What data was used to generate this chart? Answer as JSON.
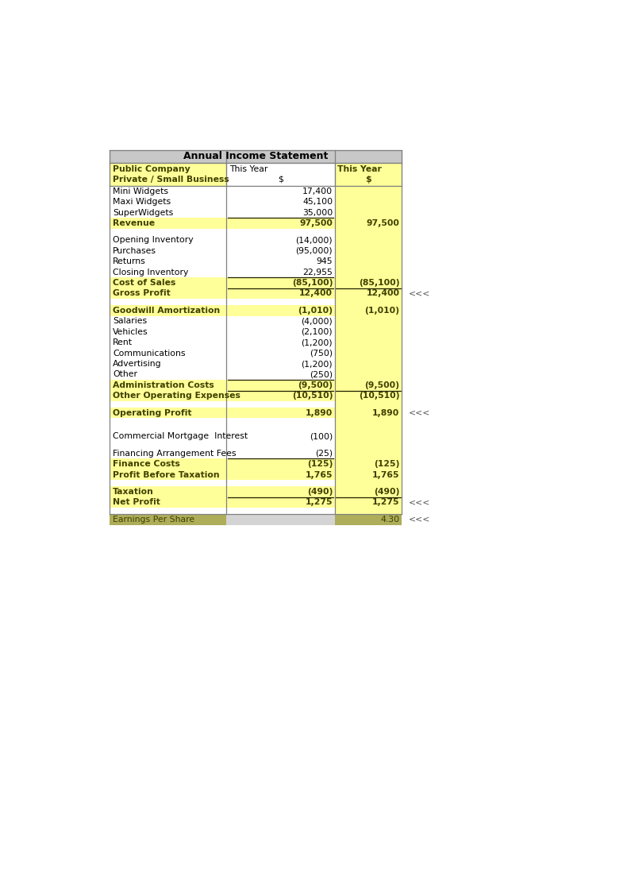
{
  "title": "Annual Income Statement",
  "rows": [
    {
      "label": "Mini Widgets",
      "col2": "17,400",
      "col3": "",
      "style": "normal",
      "underline2": false,
      "underline3": false,
      "bold_label": false
    },
    {
      "label": "Maxi Widgets",
      "col2": "45,100",
      "col3": "",
      "style": "normal",
      "underline2": false,
      "underline3": false,
      "bold_label": false
    },
    {
      "label": "SuperWidgets",
      "col2": "35,000",
      "col3": "",
      "style": "normal",
      "underline2": true,
      "underline3": false,
      "bold_label": false
    },
    {
      "label": "Revenue",
      "col2": "97,500",
      "col3": "97,500",
      "style": "yellow",
      "underline2": false,
      "underline3": false,
      "bold_label": true
    },
    {
      "label": "",
      "col2": "",
      "col3": "",
      "style": "spacer",
      "underline2": false,
      "underline3": false,
      "bold_label": false
    },
    {
      "label": "Opening Inventory",
      "col2": "(14,000)",
      "col3": "",
      "style": "normal",
      "underline2": false,
      "underline3": false,
      "bold_label": false
    },
    {
      "label": "Purchases",
      "col2": "(95,000)",
      "col3": "",
      "style": "normal",
      "underline2": false,
      "underline3": false,
      "bold_label": false
    },
    {
      "label": "Returns",
      "col2": "945",
      "col3": "",
      "style": "normal",
      "underline2": false,
      "underline3": false,
      "bold_label": false
    },
    {
      "label": "Closing Inventory",
      "col2": "22,955",
      "col3": "",
      "style": "normal",
      "underline2": true,
      "underline3": false,
      "bold_label": false
    },
    {
      "label": "Cost of Sales",
      "col2": "(85,100)",
      "col3": "(85,100)",
      "style": "yellow",
      "underline2": true,
      "underline3": true,
      "bold_label": true
    },
    {
      "label": "Gross Profit",
      "col2": "12,400",
      "col3": "12,400",
      "style": "yellow",
      "underline2": false,
      "underline3": false,
      "bold_label": true
    },
    {
      "label": "",
      "col2": "",
      "col3": "",
      "style": "spacer",
      "underline2": false,
      "underline3": false,
      "bold_label": false
    },
    {
      "label": "Goodwill Amortization",
      "col2": "(1,010)",
      "col3": "(1,010)",
      "style": "yellow",
      "underline2": false,
      "underline3": false,
      "bold_label": true
    },
    {
      "label": "Salaries",
      "col2": "(4,000)",
      "col3": "",
      "style": "normal",
      "underline2": false,
      "underline3": false,
      "bold_label": false
    },
    {
      "label": "Vehicles",
      "col2": "(2,100)",
      "col3": "",
      "style": "normal",
      "underline2": false,
      "underline3": false,
      "bold_label": false
    },
    {
      "label": "Rent",
      "col2": "(1,200)",
      "col3": "",
      "style": "normal",
      "underline2": false,
      "underline3": false,
      "bold_label": false
    },
    {
      "label": "Communications",
      "col2": "(750)",
      "col3": "",
      "style": "normal",
      "underline2": false,
      "underline3": false,
      "bold_label": false
    },
    {
      "label": "Advertising",
      "col2": "(1,200)",
      "col3": "",
      "style": "normal",
      "underline2": false,
      "underline3": false,
      "bold_label": false
    },
    {
      "label": "Other",
      "col2": "(250)",
      "col3": "",
      "style": "normal",
      "underline2": true,
      "underline3": false,
      "bold_label": false
    },
    {
      "label": "Administration Costs",
      "col2": "(9,500)",
      "col3": "(9,500)",
      "style": "yellow",
      "underline2": true,
      "underline3": true,
      "bold_label": true
    },
    {
      "label": "Other Operating Expenses",
      "col2": "(10,510)",
      "col3": "(10,510)",
      "style": "yellow",
      "underline2": false,
      "underline3": false,
      "bold_label": true
    },
    {
      "label": "",
      "col2": "",
      "col3": "",
      "style": "spacer",
      "underline2": false,
      "underline3": false,
      "bold_label": false
    },
    {
      "label": "Operating Profit",
      "col2": "1,890",
      "col3": "1,890",
      "style": "yellow",
      "underline2": false,
      "underline3": false,
      "bold_label": true
    },
    {
      "label": "",
      "col2": "",
      "col3": "",
      "style": "spacer",
      "underline2": false,
      "underline3": false,
      "bold_label": false
    },
    {
      "label": "",
      "col2": "",
      "col3": "",
      "style": "spacer",
      "underline2": false,
      "underline3": false,
      "bold_label": false
    },
    {
      "label": "Commercial Mortgage  Interest",
      "col2": "(100)",
      "col3": "",
      "style": "normal",
      "underline2": false,
      "underline3": false,
      "bold_label": false
    },
    {
      "label": "",
      "col2": "",
      "col3": "",
      "style": "spacer",
      "underline2": false,
      "underline3": false,
      "bold_label": false
    },
    {
      "label": "Financing Arrangement Fees",
      "col2": "(25)",
      "col3": "",
      "style": "normal",
      "underline2": true,
      "underline3": false,
      "bold_label": false
    },
    {
      "label": "Finance Costs",
      "col2": "(125)",
      "col3": "(125)",
      "style": "yellow",
      "underline2": false,
      "underline3": false,
      "bold_label": true
    },
    {
      "label": "Profit Before Taxation",
      "col2": "1,765",
      "col3": "1,765",
      "style": "yellow",
      "underline2": false,
      "underline3": false,
      "bold_label": true
    },
    {
      "label": "",
      "col2": "",
      "col3": "",
      "style": "spacer",
      "underline2": false,
      "underline3": false,
      "bold_label": false
    },
    {
      "label": "Taxation",
      "col2": "(490)",
      "col3": "(490)",
      "style": "yellow",
      "underline2": true,
      "underline3": true,
      "bold_label": true
    },
    {
      "label": "Net Profit",
      "col2": "1,275",
      "col3": "1,275",
      "style": "yellow",
      "underline2": false,
      "underline3": false,
      "bold_label": true
    },
    {
      "label": "",
      "col2": "",
      "col3": "",
      "style": "spacer",
      "underline2": false,
      "underline3": false,
      "bold_label": false
    },
    {
      "label": "Earnings Per Share",
      "col2": "",
      "col3": "4.30",
      "style": "green",
      "underline2": false,
      "underline3": false,
      "bold_label": false
    }
  ],
  "arrow_row_labels": [
    "Gross Profit",
    "Operating Profit",
    "Net Profit",
    "Earnings Per Share"
  ],
  "yellow_bg": "#FFFF99",
  "green_bg": "#ADAD5A",
  "title_bg": "#C8C8C8",
  "header_col1_bg": "#FFFF99",
  "header_col2_bg": "#FFFFFF",
  "header_col3_bg": "#FFFF99",
  "border_color": "#808080",
  "text_dark": "#404000",
  "text_normal": "#000000",
  "arrow_text": "<<<",
  "font_size": 7.8
}
